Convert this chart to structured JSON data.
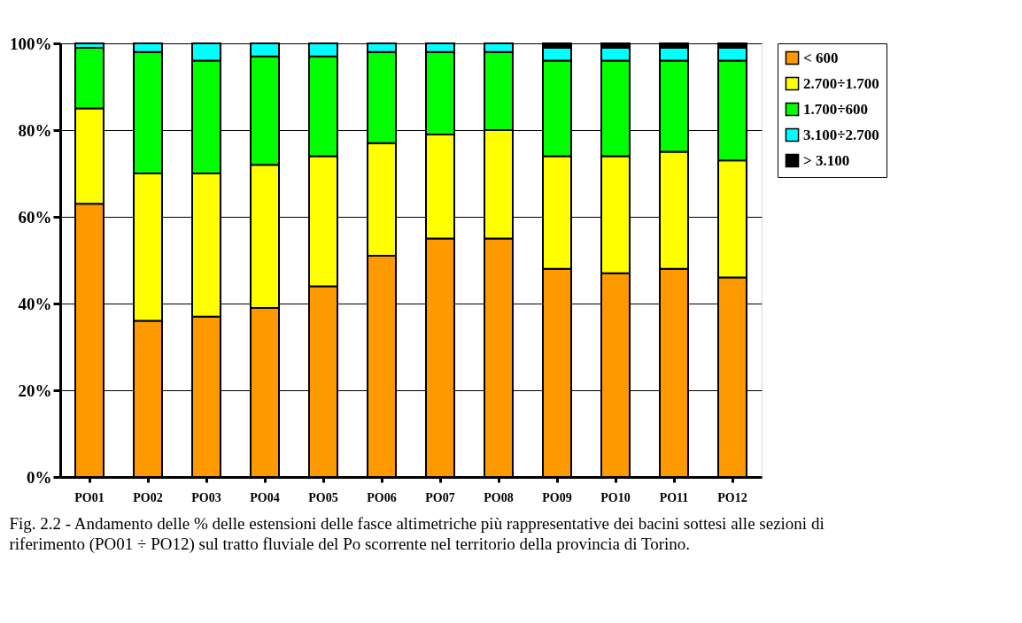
{
  "chart_data": {
    "type": "bar",
    "stacked": true,
    "categories": [
      "PO01",
      "PO02",
      "PO03",
      "PO04",
      "PO05",
      "PO06",
      "PO07",
      "PO08",
      "PO09",
      "PO10",
      "PO11",
      "PO12"
    ],
    "series": [
      {
        "name": "< 600",
        "color": "#ff9900",
        "values": [
          63,
          36,
          37,
          39,
          44,
          51,
          55,
          55,
          48,
          47,
          48,
          46
        ]
      },
      {
        "name": "2.700÷1.700",
        "color": "#ffff00",
        "values": [
          22,
          34,
          33,
          33,
          30,
          26,
          24,
          25,
          26,
          27,
          27,
          27
        ]
      },
      {
        "name": "1.700÷600",
        "color": "#00ff00",
        "values": [
          14,
          28,
          26,
          25,
          23,
          21,
          19,
          18,
          22,
          22,
          21,
          23
        ]
      },
      {
        "name": "3.100÷2.700",
        "color": "#00ffff",
        "values": [
          1,
          2,
          4,
          3,
          3,
          2,
          2,
          2,
          3,
          3,
          3,
          3
        ]
      },
      {
        "name": "> 3.100",
        "color": "#000000",
        "values": [
          0,
          0,
          0,
          0,
          0,
          0,
          0,
          0,
          1,
          1,
          1,
          1
        ]
      }
    ],
    "ylim": [
      0,
      100
    ],
    "yticks": [
      {
        "value": 0,
        "label": "0%"
      },
      {
        "value": 20,
        "label": "20%"
      },
      {
        "value": 40,
        "label": "40%"
      },
      {
        "value": 60,
        "label": "60%"
      },
      {
        "value": 80,
        "label": "80%"
      },
      {
        "value": 100,
        "label": "100%"
      }
    ],
    "grid": "y",
    "legend": "right",
    "annotations": [
      "Fig. 2.2 - Andamento delle % delle estensioni delle fasce altimetriche più rappresentative dei bacini sottesi alle sezioni di riferimento (PO01 ÷ PO12) sul tratto fluviale del Po scorrente nel territorio della provincia di Torino."
    ]
  }
}
